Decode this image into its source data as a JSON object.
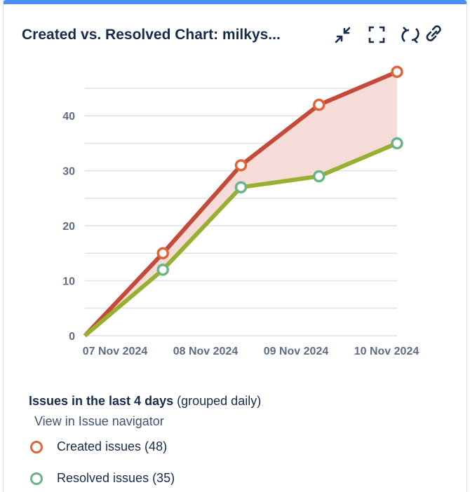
{
  "header": {
    "title": "Created vs. Resolved Chart: milkys..."
  },
  "chart_data": {
    "type": "line",
    "xtick_labels": [
      "07 Nov 2024",
      "08 Nov 2024",
      "09 Nov 2024",
      "10 Nov 2024"
    ],
    "series": [
      {
        "name": "Created issues (48)",
        "color": "#c44b3a",
        "marker_color": "#e0643a",
        "values": [
          0,
          15,
          31,
          42,
          48
        ]
      },
      {
        "name": "Resolved issues (35)",
        "color": "#97b032",
        "marker_color": "#6db38a",
        "values": [
          0,
          12,
          27,
          29,
          35
        ]
      }
    ],
    "fill_color": "#f6dcd8",
    "ylim": [
      0,
      45
    ],
    "yticks": [
      0,
      10,
      20,
      30,
      40
    ],
    "grid": [
      0,
      5,
      10,
      15,
      20,
      25,
      30,
      35,
      40,
      45
    ]
  },
  "footer": {
    "period": "Issues in the last 4 days",
    "grouping": "(grouped daily)",
    "link": "View in Issue navigator"
  }
}
